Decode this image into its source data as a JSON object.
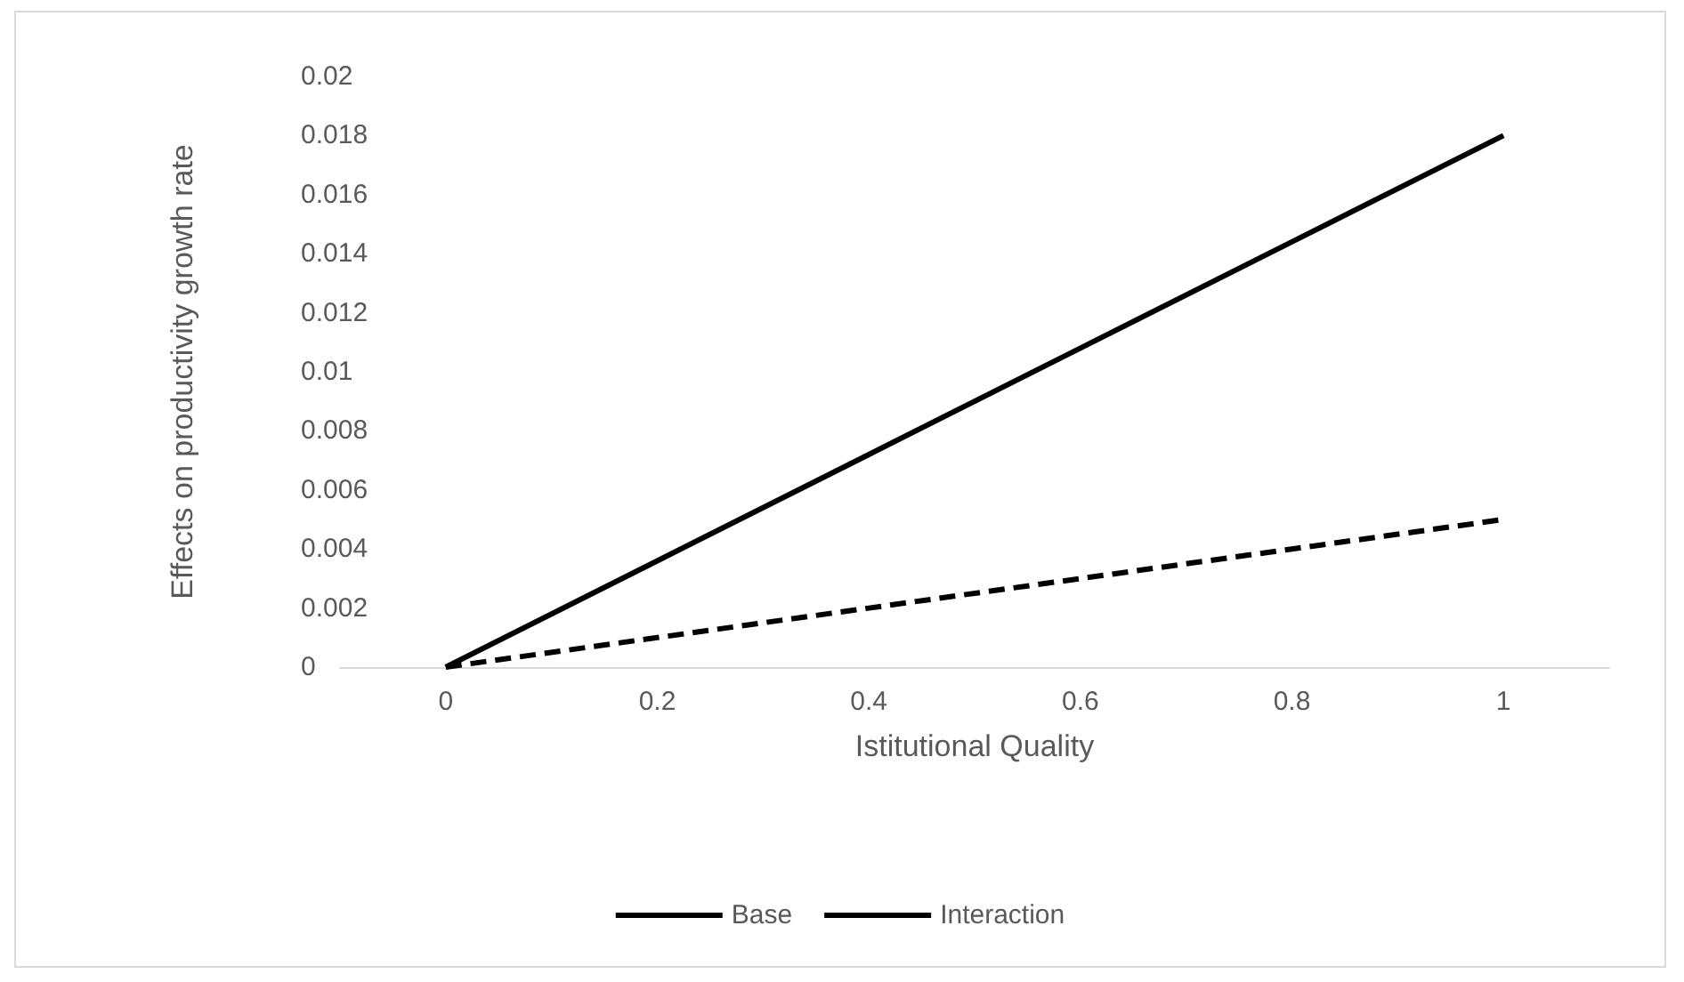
{
  "chart_data": {
    "type": "line",
    "xlabel": "Istitutional Quality",
    "ylabel": "Effects on productivity growth rate",
    "categories": [
      "0",
      "0.2",
      "0.4",
      "0.6",
      "0.8",
      "1"
    ],
    "series": [
      {
        "name": "Base",
        "color": "#000000",
        "line_style": "solid",
        "values": [
          0,
          0.0036,
          0.0072,
          0.0108,
          0.0144,
          0.018
        ]
      },
      {
        "name": "Interaction",
        "color": "#000000",
        "line_style": "dashed",
        "values": [
          0,
          0.001,
          0.002,
          0.003,
          0.004,
          0.005
        ]
      }
    ],
    "ylim": [
      0,
      0.02
    ],
    "yticks": [
      0,
      0.002,
      0.004,
      0.006,
      0.008,
      0.01,
      0.012,
      0.014,
      0.016,
      0.018,
      0.02
    ],
    "grid": false,
    "legend": "bottom",
    "marker": "none"
  }
}
